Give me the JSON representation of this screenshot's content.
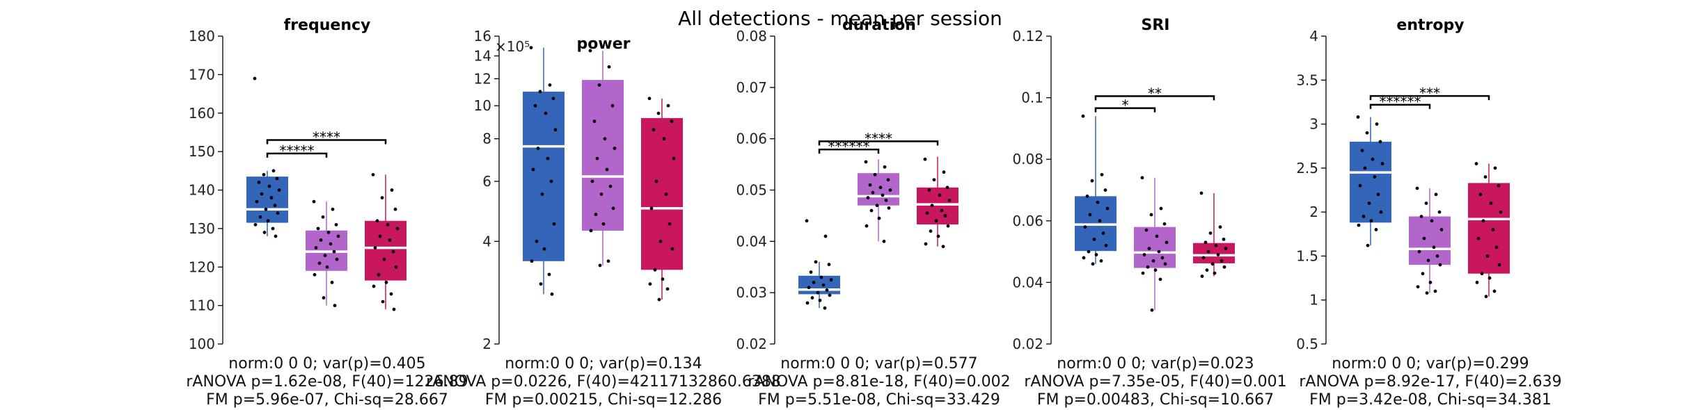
{
  "figure_title": "All detections - mean per session",
  "colors": [
    "#3366b8",
    "#b266cc",
    "#c8175e"
  ],
  "chart_data": [
    {
      "type": "box",
      "title": "frequency",
      "ylim": [
        100,
        180
      ],
      "yticks": [
        100,
        110,
        120,
        130,
        140,
        150,
        160,
        170,
        180
      ],
      "ytick_labels": [
        "100",
        "110",
        "120",
        "130",
        "140",
        "150",
        "160",
        "170",
        "180"
      ],
      "boxes": [
        {
          "q1": 131.5,
          "median": 135,
          "q3": 143.5,
          "whisker_low": 128,
          "whisker_high": 145,
          "points": [
            169,
            145,
            144,
            143,
            142,
            141,
            140,
            139,
            138,
            137,
            136,
            135,
            134,
            133,
            132,
            131,
            130,
            129,
            128
          ]
        },
        {
          "q1": 119,
          "median": 124,
          "q3": 129.5,
          "whisker_low": 110,
          "whisker_high": 137,
          "points": [
            137,
            135,
            133,
            131,
            130,
            129,
            128,
            127,
            126,
            125,
            124,
            123,
            122,
            121,
            120,
            118,
            116,
            112,
            110
          ]
        },
        {
          "q1": 116.5,
          "median": 125,
          "q3": 132,
          "whisker_low": 109,
          "whisker_high": 144,
          "points": [
            144,
            140,
            138,
            135,
            132,
            131,
            130,
            128,
            127,
            125,
            124,
            122,
            120,
            118,
            116,
            115,
            113,
            111,
            109
          ]
        }
      ],
      "sig": [
        {
          "from": 0,
          "to": 1,
          "y": 149.5,
          "label": "*****"
        },
        {
          "from": 0,
          "to": 2,
          "y": 153,
          "label": "****"
        }
      ],
      "stats": [
        "norm:0  0  0; var(p)=0.405",
        "rANOVA p=1.62e-08, F(40)=1226.89",
        "FM p=5.96e-07, Chi-sq=28.667"
      ]
    },
    {
      "type": "box",
      "title": "power",
      "scale": "log",
      "ylim": [
        2,
        16
      ],
      "multiplier": "×10⁵",
      "yticks": [
        2,
        4,
        6,
        8,
        10,
        12,
        14,
        16
      ],
      "ytick_labels": [
        "2",
        "4",
        "6",
        "8",
        "10",
        "12",
        "14",
        "16"
      ],
      "boxes": [
        {
          "q1": 3.5,
          "median": 7.6,
          "q3": 11,
          "whisker_low": 2.8,
          "whisker_high": 14.8,
          "points": [
            14.8,
            11.5,
            11,
            10.5,
            10,
            9.5,
            8.5,
            7.5,
            7,
            6.5,
            6,
            5.5,
            4.5,
            4,
            3.8,
            3.5,
            3.2,
            3,
            2.8
          ]
        },
        {
          "q1": 4.3,
          "median": 6.2,
          "q3": 11.9,
          "whisker_low": 3.4,
          "whisker_high": 14.5,
          "points": [
            14.5,
            13,
            11.5,
            10,
            9,
            8,
            7.5,
            7,
            6.5,
            6,
            5.8,
            5.5,
            5,
            4.8,
            4.5,
            4.3,
            3.5,
            3.4
          ]
        },
        {
          "q1": 3.3,
          "median": 5,
          "q3": 9.2,
          "whisker_low": 2.7,
          "whisker_high": 10.5,
          "points": [
            10.5,
            10,
            9.5,
            9,
            8.5,
            8,
            7,
            6,
            5.5,
            5,
            4.5,
            4,
            3.8,
            3.3,
            3.1,
            3,
            2.9,
            2.7
          ]
        }
      ],
      "sig": [],
      "stats": [
        "norm:0  0  0; var(p)=0.134",
        "rANOVA p=0.0226, F(40)=42117132860.6388",
        "FM p=0.00215, Chi-sq=12.286"
      ]
    },
    {
      "type": "box",
      "title": "duration",
      "ylim": [
        0.02,
        0.08
      ],
      "yticks": [
        0.02,
        0.03,
        0.04,
        0.05,
        0.06,
        0.07,
        0.08
      ],
      "ytick_labels": [
        "0.02",
        "0.03",
        "0.04",
        "0.05",
        "0.06",
        "0.07",
        "0.08"
      ],
      "boxes": [
        {
          "q1": 0.0297,
          "median": 0.0306,
          "q3": 0.0333,
          "whisker_low": 0.027,
          "whisker_high": 0.036,
          "points": [
            0.044,
            0.041,
            0.036,
            0.0355,
            0.034,
            0.033,
            0.0325,
            0.032,
            0.0315,
            0.031,
            0.0305,
            0.03,
            0.0295,
            0.029,
            0.0285,
            0.028,
            0.027
          ]
        },
        {
          "q1": 0.047,
          "median": 0.0488,
          "q3": 0.0533,
          "whisker_low": 0.04,
          "whisker_high": 0.056,
          "points": [
            0.0555,
            0.0545,
            0.053,
            0.052,
            0.051,
            0.0505,
            0.05,
            0.0495,
            0.049,
            0.0485,
            0.048,
            0.047,
            0.0465,
            0.046,
            0.0445,
            0.043,
            0.04
          ]
        },
        {
          "q1": 0.0433,
          "median": 0.0472,
          "q3": 0.0505,
          "whisker_low": 0.039,
          "whisker_high": 0.0565,
          "points": [
            0.056,
            0.0535,
            0.052,
            0.0505,
            0.05,
            0.049,
            0.048,
            0.047,
            0.046,
            0.0455,
            0.045,
            0.044,
            0.043,
            0.042,
            0.041,
            0.0395,
            0.039
          ]
        }
      ],
      "sig": [
        {
          "from": 0,
          "to": 1,
          "y": 0.0579,
          "label": "******"
        },
        {
          "from": 0,
          "to": 2,
          "y": 0.0595,
          "label": "****"
        }
      ],
      "stats": [
        "norm:0  0  0; var(p)=0.577",
        "rANOVA p=8.81e-18, F(40)=0.002",
        "FM p=5.51e-08, Chi-sq=33.429"
      ]
    },
    {
      "type": "box",
      "title": "SRI",
      "ylim": [
        0.02,
        0.12
      ],
      "yticks": [
        0.02,
        0.04,
        0.06,
        0.08,
        0.1,
        0.12
      ],
      "ytick_labels": [
        "0.02",
        "0.04",
        "0.06",
        "0.08",
        "0.1",
        "0.12"
      ],
      "boxes": [
        {
          "q1": 0.0502,
          "median": 0.0588,
          "q3": 0.068,
          "whisker_low": 0.046,
          "whisker_high": 0.094,
          "points": [
            0.094,
            0.075,
            0.073,
            0.07,
            0.068,
            0.066,
            0.064,
            0.062,
            0.06,
            0.058,
            0.056,
            0.054,
            0.052,
            0.05,
            0.049,
            0.048,
            0.047,
            0.046
          ]
        },
        {
          "q1": 0.0447,
          "median": 0.0497,
          "q3": 0.058,
          "whisker_low": 0.031,
          "whisker_high": 0.074,
          "points": [
            0.074,
            0.064,
            0.062,
            0.059,
            0.057,
            0.055,
            0.053,
            0.051,
            0.05,
            0.049,
            0.048,
            0.047,
            0.046,
            0.045,
            0.044,
            0.043,
            0.041,
            0.031
          ]
        },
        {
          "q1": 0.0462,
          "median": 0.0488,
          "q3": 0.0528,
          "whisker_low": 0.042,
          "whisker_high": 0.069,
          "points": [
            0.069,
            0.058,
            0.056,
            0.054,
            0.053,
            0.052,
            0.051,
            0.05,
            0.049,
            0.048,
            0.047,
            0.046,
            0.045,
            0.044,
            0.043,
            0.042
          ]
        }
      ],
      "sig": [
        {
          "from": 0,
          "to": 1,
          "y": 0.0966,
          "label": "*"
        },
        {
          "from": 0,
          "to": 2,
          "y": 0.1005,
          "label": "**"
        }
      ],
      "stats": [
        "norm:0  0  0; var(p)=0.023",
        "rANOVA p=7.35e-05, F(40)=0.001",
        "FM p=0.00483, Chi-sq=10.667"
      ]
    },
    {
      "type": "box",
      "title": "entropy",
      "ylim": [
        0.5,
        4
      ],
      "yticks": [
        0.5,
        1,
        1.5,
        2,
        2.5,
        3,
        3.5,
        4
      ],
      "ytick_labels": [
        "0.5",
        "1",
        "1.5",
        "2",
        "2.5",
        "3",
        "3.5",
        "4"
      ],
      "boxes": [
        {
          "q1": 1.88,
          "median": 2.45,
          "q3": 2.8,
          "whisker_low": 1.62,
          "whisker_high": 3.08,
          "points": [
            3.08,
            3.0,
            2.9,
            2.8,
            2.7,
            2.6,
            2.55,
            2.5,
            2.4,
            2.3,
            2.2,
            2.1,
            2.0,
            1.95,
            1.9,
            1.85,
            1.8,
            1.62
          ]
        },
        {
          "q1": 1.4,
          "median": 1.58,
          "q3": 1.95,
          "whisker_low": 1.08,
          "whisker_high": 2.27,
          "points": [
            2.27,
            2.2,
            2.1,
            2.0,
            1.95,
            1.9,
            1.8,
            1.7,
            1.6,
            1.55,
            1.5,
            1.45,
            1.4,
            1.3,
            1.2,
            1.15,
            1.1,
            1.08
          ]
        },
        {
          "q1": 1.3,
          "median": 1.92,
          "q3": 2.33,
          "whisker_low": 1.04,
          "whisker_high": 2.55,
          "points": [
            2.55,
            2.5,
            2.4,
            2.3,
            2.2,
            2.1,
            2.0,
            1.9,
            1.8,
            1.7,
            1.6,
            1.5,
            1.4,
            1.3,
            1.25,
            1.2,
            1.1,
            1.04
          ]
        }
      ],
      "sig": [
        {
          "from": 0,
          "to": 1,
          "y": 3.22,
          "label": "******"
        },
        {
          "from": 0,
          "to": 2,
          "y": 3.32,
          "label": "***"
        }
      ],
      "stats": [
        "norm:0  0  0; var(p)=0.299",
        "rANOVA p=8.92e-17, F(40)=2.639",
        "FM p=3.42e-08, Chi-sq=34.381"
      ]
    }
  ]
}
